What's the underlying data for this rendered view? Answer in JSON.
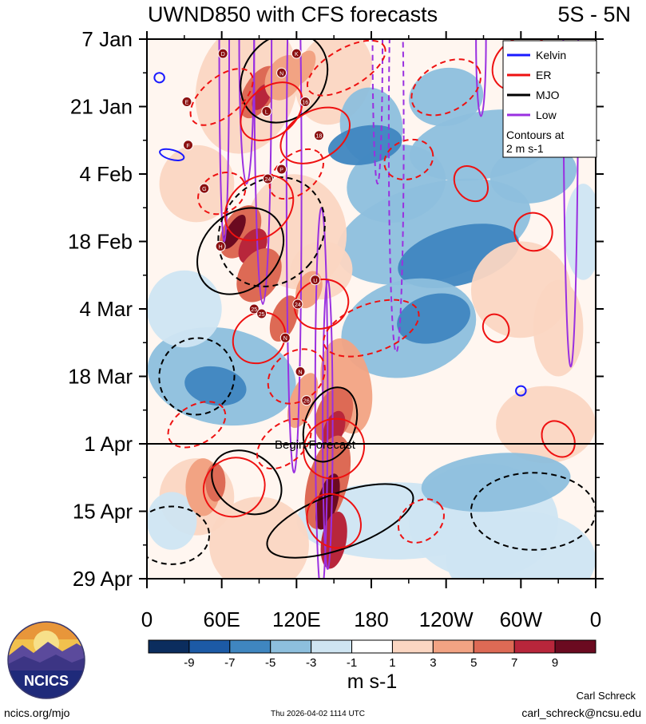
{
  "chart_data": {
    "type": "heatmap",
    "title": "UWND850 with CFS forecasts",
    "region": "5S - 5N",
    "y_tick_labels": [
      "7 Jan",
      "21 Jan",
      "4 Feb",
      "18 Feb",
      "4 Mar",
      "18 Mar",
      "1 Apr",
      "15 Apr",
      "29 Apr"
    ],
    "x_tick_labels": [
      "0",
      "60E",
      "120E",
      "180",
      "120W",
      "60W",
      "0"
    ],
    "x_domain": [
      0,
      360
    ],
    "y_domain_days": [
      0,
      112
    ],
    "forecast_start_day": 84,
    "forecast_label": "Begin Forecast",
    "legend": {
      "entries": [
        {
          "name": "Kelvin",
          "color": "#1a1aff"
        },
        {
          "name": "ER",
          "color": "#ee1111"
        },
        {
          "name": "MJO",
          "color": "#000000"
        },
        {
          "name": "Low",
          "color": "#9a30e0"
        }
      ],
      "note_line1": "Contours at",
      "note_line2": "2 m s-1"
    },
    "colorbar": {
      "colors": [
        "#0b2d5e",
        "#1c5aa6",
        "#3f86c0",
        "#8dbfdd",
        "#cfe5f2",
        "#ffffff",
        "#fbd6c2",
        "#f2a383",
        "#dd6a55",
        "#b8263b",
        "#6b0a20"
      ],
      "tick_labels": [
        "-9",
        "-7",
        "-5",
        "-3",
        "-1",
        "1",
        "3",
        "5",
        "7",
        "9"
      ],
      "units": "m s-1"
    },
    "storm_markers": [
      {
        "label": "D",
        "lon": 61,
        "day": 3
      },
      {
        "label": "K",
        "lon": 120,
        "day": 3
      },
      {
        "label": "N",
        "lon": 108,
        "day": 7
      },
      {
        "label": "E",
        "lon": 32,
        "day": 13
      },
      {
        "label": "16",
        "lon": 127,
        "day": 13
      },
      {
        "label": "L",
        "lon": 96,
        "day": 15
      },
      {
        "label": "18",
        "lon": 138,
        "day": 20
      },
      {
        "label": "F",
        "lon": 33,
        "day": 22
      },
      {
        "label": "24",
        "lon": 97,
        "day": 29
      },
      {
        "label": "P",
        "lon": 108,
        "day": 27
      },
      {
        "label": "G",
        "lon": 46,
        "day": 31
      },
      {
        "label": "H",
        "lon": 59,
        "day": 43
      },
      {
        "label": "U",
        "lon": 135,
        "day": 50
      },
      {
        "label": "24",
        "lon": 121,
        "day": 55
      },
      {
        "label": "25",
        "lon": 86,
        "day": 56
      },
      {
        "label": "25",
        "lon": 92,
        "day": 57
      },
      {
        "label": "N",
        "lon": 111,
        "day": 62
      },
      {
        "label": "N",
        "lon": 123,
        "day": 69
      },
      {
        "label": "26",
        "lon": 128,
        "day": 75
      }
    ]
  },
  "footer": {
    "logo_text": "NCICS",
    "website": "ncics.org/mjo",
    "timestamp": "Thu 2026-04-02 1114 UTC",
    "author": "Carl Schreck",
    "email": "carl_schreck@ncsu.edu"
  }
}
